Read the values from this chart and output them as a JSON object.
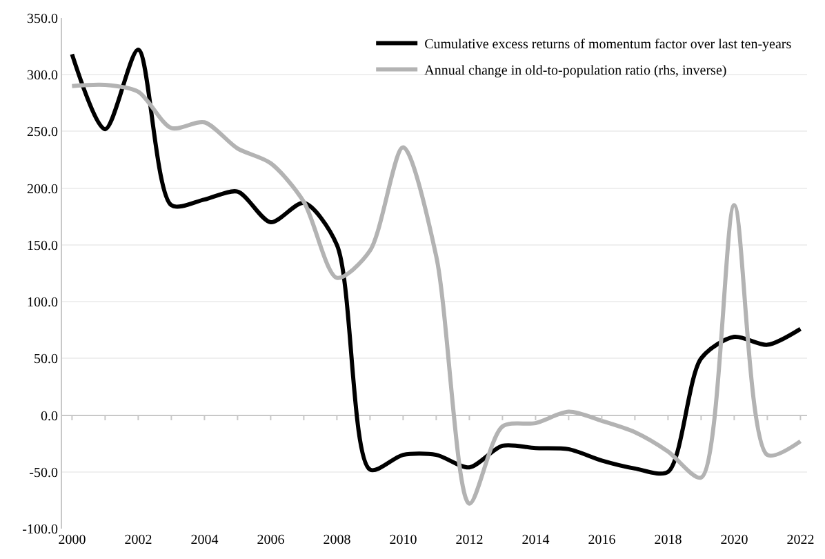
{
  "chart_data": {
    "type": "line",
    "x": [
      2000,
      2001,
      2002,
      2003,
      2004,
      2005,
      2006,
      2007,
      2008,
      2009,
      2010,
      2011,
      2012,
      2013,
      2014,
      2015,
      2016,
      2017,
      2018,
      2019,
      2020,
      2021,
      2022
    ],
    "series": [
      {
        "name": "Cumulative excess returns of momentum factor over last ten-years",
        "color": "#000000",
        "values": [
          318,
          252,
          322,
          185,
          190,
          197,
          170,
          187,
          150,
          -48,
          -35,
          -35,
          -46,
          -27,
          -29,
          -30,
          -40,
          -47,
          -50,
          50,
          69,
          62,
          76
        ]
      },
      {
        "name": "Annual change in old-to-population ratio (rhs, inverse)",
        "color": "#b3b3b3",
        "values": [
          290,
          291,
          285,
          253,
          258,
          235,
          222,
          188,
          121,
          145,
          236,
          140,
          -78,
          -10,
          -7,
          3,
          -5,
          -15,
          -32,
          -55,
          185,
          -35,
          -23
        ]
      }
    ],
    "xlim": [
      1999.7,
      2022.2
    ],
    "xticks": [
      2000,
      2002,
      2004,
      2006,
      2008,
      2010,
      2012,
      2014,
      2016,
      2018,
      2020,
      2022
    ],
    "ylim": [
      -100,
      350
    ],
    "yticks": [
      {
        "value": -100,
        "label": "-100.0"
      },
      {
        "value": -50,
        "label": "-50.0"
      },
      {
        "value": 0,
        "label": "0.0"
      },
      {
        "value": 50,
        "label": "50.0"
      },
      {
        "value": 100,
        "label": "100.0"
      },
      {
        "value": 150,
        "label": "150.0"
      },
      {
        "value": 200,
        "label": "200.0"
      },
      {
        "value": 250,
        "label": "250.0"
      },
      {
        "value": 300,
        "label": "300.0"
      },
      {
        "value": 350,
        "label": "350.0"
      }
    ],
    "grid": "y",
    "legend": "top right",
    "marker": "none",
    "line_style": "solid"
  }
}
